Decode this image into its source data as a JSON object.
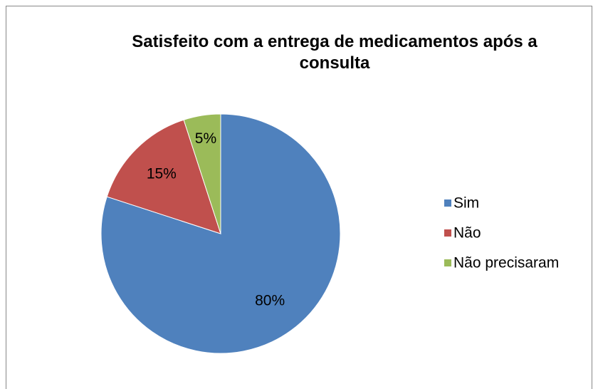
{
  "chart_data": {
    "type": "pie",
    "title": "Satisfeito com a entrega de medicamentos após a consulta",
    "categories": [
      "Sim",
      "Não",
      "Não precisaram"
    ],
    "values": [
      80,
      15,
      5
    ],
    "value_labels": [
      "80%",
      "15%",
      "5%"
    ],
    "colors": [
      "#4f81bd",
      "#c0504d",
      "#9bbb59"
    ],
    "legend": "right"
  }
}
